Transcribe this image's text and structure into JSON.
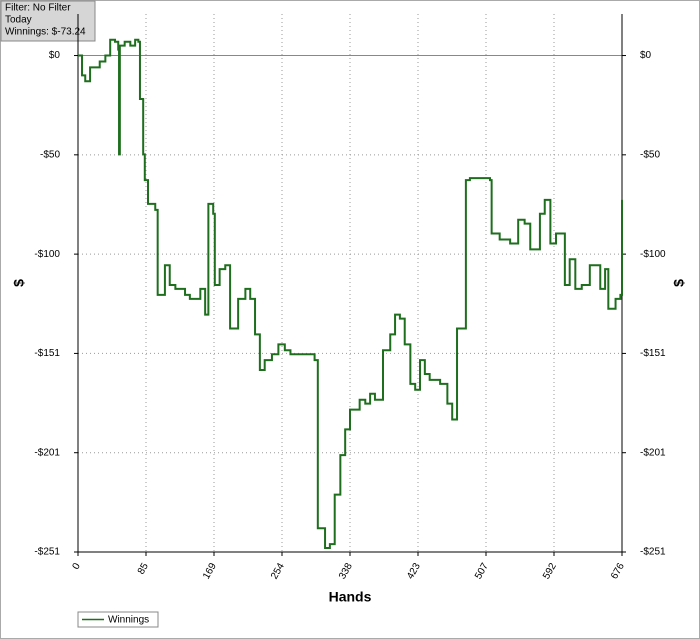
{
  "chart_data": {
    "type": "line",
    "info": [
      "Filter: No Filter",
      "Today",
      "Winnings: $-73.24"
    ],
    "x_label": "Hands",
    "y_label": "$",
    "xlim": [
      0,
      676
    ],
    "ylim": [
      -251,
      21
    ],
    "xticks": [
      0,
      {
        "value": 84.5,
        "label": "85"
      },
      169,
      {
        "value": 253.5,
        "label": "254"
      },
      338,
      {
        "value": 422.5,
        "label": "423"
      },
      507,
      {
        "value": 591.5,
        "label": "592"
      },
      676
    ],
    "yticks": [
      {
        "value": 0,
        "label": "$0"
      },
      {
        "value": -50.2,
        "label": "-$50"
      },
      {
        "value": -100.4,
        "label": "-$100"
      },
      {
        "value": -150.6,
        "label": "-$151"
      },
      {
        "value": -200.8,
        "label": "-$201"
      },
      {
        "value": -251,
        "label": "-$251"
      }
    ],
    "grid": true,
    "legend": "bottom-left",
    "x": [
      0,
      5,
      9,
      15,
      27,
      34,
      40,
      46,
      50,
      51,
      52,
      58,
      65,
      71,
      75,
      77,
      81,
      83,
      87,
      96,
      99,
      108,
      114,
      121,
      133,
      139,
      152,
      158,
      162,
      168,
      170,
      176,
      183,
      189,
      199,
      208,
      214,
      220,
      226,
      232,
      241,
      249,
      257,
      264,
      276,
      288,
      294,
      298,
      307,
      313,
      319,
      326,
      332,
      338,
      350,
      357,
      363,
      369,
      379,
      388,
      394,
      400,
      406,
      413,
      419,
      425,
      431,
      437,
      450,
      459,
      465,
      471,
      477,
      482,
      487,
      500,
      512,
      514,
      524,
      537,
      547,
      555,
      562,
      574,
      580,
      587,
      594,
      605,
      611,
      618,
      626,
      636,
      649,
      655,
      659,
      668,
      674,
      676
    ],
    "series": [
      {
        "name": "Winnings",
        "color": "#1e6e1e",
        "values": [
          0,
          -10,
          -13,
          -6,
          -3,
          0,
          8,
          7,
          3,
          -50,
          5,
          7,
          5,
          8,
          7,
          -22,
          -50,
          -63,
          -75,
          -78,
          -121,
          -106,
          -116,
          -118,
          -121,
          -123,
          -118,
          -131,
          -75,
          -80,
          -116,
          -108,
          -106,
          -138,
          -123,
          -118,
          -123,
          -141,
          -159,
          -154,
          -151,
          -146,
          -149,
          -151,
          -151,
          -151,
          -154,
          -239,
          -249,
          -247,
          -222,
          -202,
          -189,
          -179,
          -174,
          -176,
          -171,
          -174,
          -149,
          -141,
          -131,
          -133,
          -146,
          -166,
          -169,
          -154,
          -161,
          -164,
          -166,
          -176,
          -184,
          -138,
          -138,
          -63,
          -62,
          -62,
          -63,
          -90,
          -93,
          -95,
          -83,
          -85,
          -98,
          -80,
          -73,
          -95,
          -90,
          -116,
          -103,
          -118,
          -116,
          -106,
          -118,
          -108,
          -128,
          -123,
          -121,
          -73
        ]
      }
    ]
  }
}
